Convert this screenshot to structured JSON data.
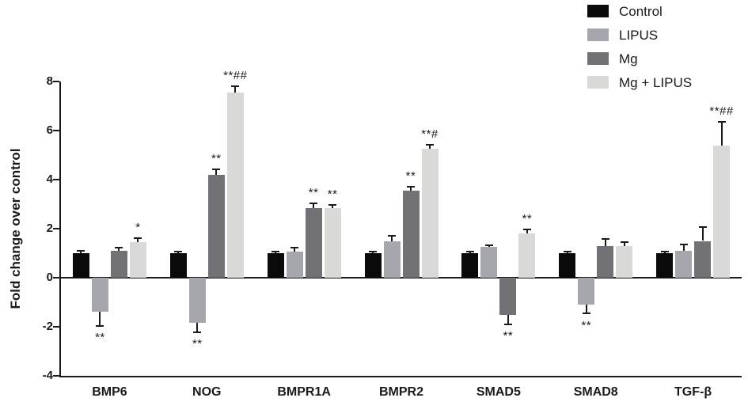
{
  "chart_data": {
    "type": "bar",
    "title": "",
    "xlabel": "",
    "ylabel": "Fold change over control",
    "ylim": [
      -4,
      8
    ],
    "yticks": [
      -4,
      -2,
      0,
      2,
      4,
      6,
      8
    ],
    "grid": false,
    "legend_position": "top-right",
    "categories": [
      "BMP6",
      "NOG",
      "BMPR1A",
      "BMPR2",
      "SMAD5",
      "SMAD8",
      "TGF-β"
    ],
    "series": [
      {
        "name": "Control",
        "color": "#0a0a0a",
        "values": [
          1.0,
          1.0,
          1.0,
          1.0,
          1.0,
          1.0,
          1.0
        ],
        "errors": [
          0.12,
          0.1,
          0.1,
          0.1,
          0.1,
          0.1,
          0.1
        ],
        "annotations": [
          "",
          "",
          "",
          "",
          "",
          "",
          ""
        ]
      },
      {
        "name": "LIPUS",
        "color": "#a6a6ad",
        "values": [
          -1.4,
          -1.85,
          1.05,
          1.5,
          1.25,
          -1.1,
          1.1
        ],
        "errors": [
          0.6,
          0.4,
          0.2,
          0.25,
          0.12,
          0.4,
          0.3
        ],
        "annotations": [
          "**",
          "**",
          "",
          "",
          "",
          "**",
          ""
        ]
      },
      {
        "name": "Mg",
        "color": "#717176",
        "values": [
          1.1,
          4.2,
          2.85,
          3.55,
          -1.5,
          1.3,
          1.5
        ],
        "errors": [
          0.15,
          0.25,
          0.2,
          0.2,
          0.45,
          0.3,
          0.6
        ],
        "annotations": [
          "",
          "**",
          "**",
          "**",
          "**",
          "",
          ""
        ]
      },
      {
        "name": "Mg + LIPUS",
        "color": "#d9d9d7",
        "values": [
          1.45,
          7.55,
          2.85,
          5.25,
          1.8,
          1.3,
          5.4
        ],
        "errors": [
          0.2,
          0.3,
          0.15,
          0.2,
          0.2,
          0.2,
          1.0
        ],
        "annotations": [
          "*",
          "**##",
          "**",
          "**#",
          "**",
          "",
          "**##"
        ]
      }
    ]
  }
}
